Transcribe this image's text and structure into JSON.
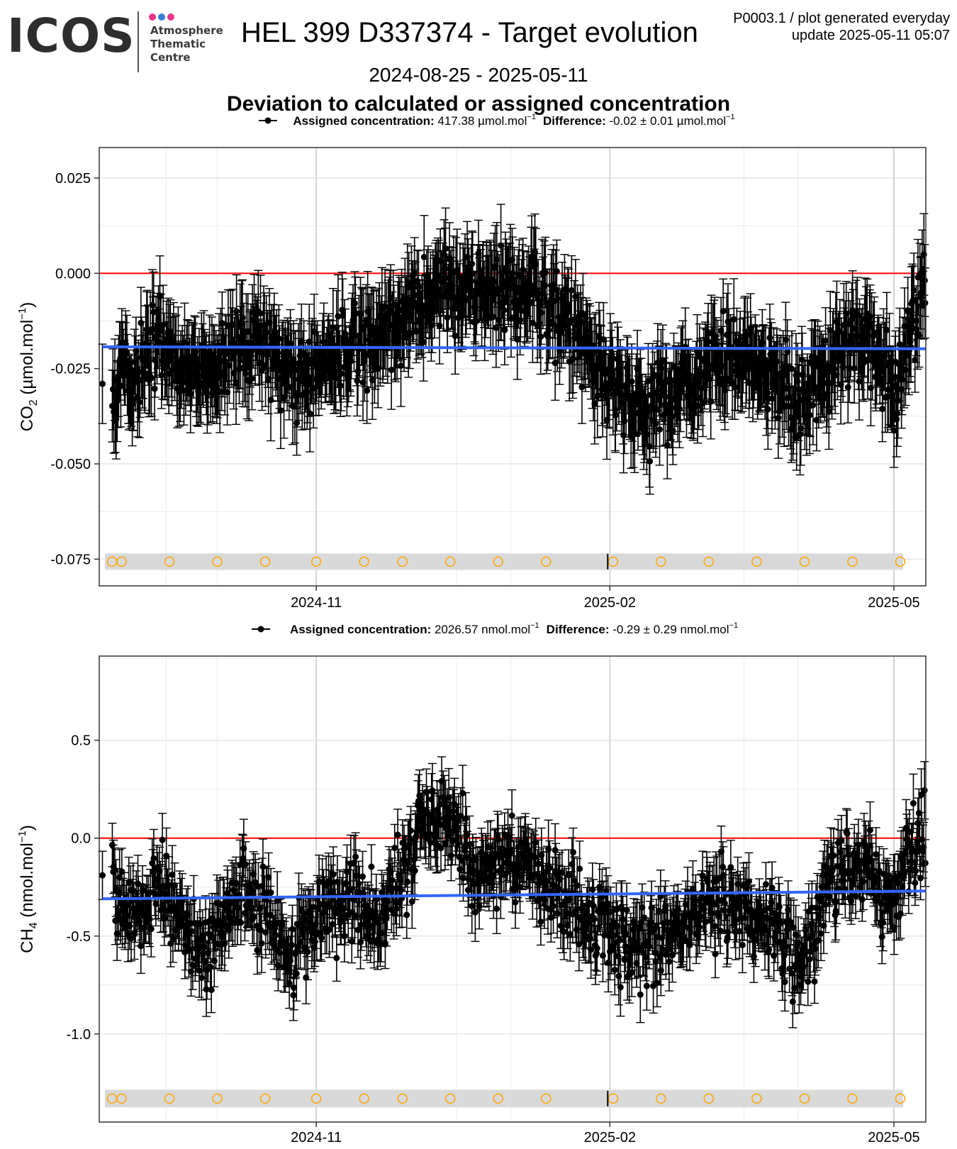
{
  "header": {
    "logo_word": "ICOS",
    "logo_lines": [
      "Atmosphere",
      "Thematic",
      "Centre"
    ],
    "logo_dot_colors": [
      "#e8348a",
      "#3a7fd5",
      "#e8348a"
    ],
    "title": "HEL 399 D337374 - Target evolution",
    "info_line1": "P0003.1 / plot generated everyday",
    "info_line2": "update  2025-05-11 05:07",
    "date_range": "2024-08-25 - 2025-05-11",
    "subtitle": "Deviation to calculated or assigned concentration"
  },
  "colors": {
    "points": "#000000",
    "zero_line": "#ff0000",
    "trend_line": "#3366ff",
    "calibration_marker": "#ffa500",
    "calibration_band": "#d9d9d9",
    "grid": "#ebebeb",
    "grid_major": "#d4d4d4"
  },
  "chart_data": [
    {
      "type": "scatter",
      "name": "CO2",
      "legend": {
        "assigned_label": "Assigned concentration:",
        "assigned_value": "417.38 µmol.mol",
        "difference_label": "Difference:",
        "difference_value": "-0.02 ± 0.01 µmol.mol"
      },
      "ylabel_base": "CO",
      "ylabel_sub": "2",
      "ylabel_unit": "(µmol.mol",
      "ylabel_sup": "-1",
      "ylabel_close": ")",
      "x_range": [
        "2024-08-25",
        "2025-05-11"
      ],
      "xticks": [
        {
          "date": "2024-11-01",
          "label": "2024-11"
        },
        {
          "date": "2025-02-01",
          "label": "2025-02"
        },
        {
          "date": "2025-05-01",
          "label": "2025-05"
        }
      ],
      "ylim": [
        -0.082,
        0.033
      ],
      "yticks": [
        -0.075,
        -0.05,
        -0.025,
        0.0,
        0.025
      ],
      "ytick_labels": [
        "-0.075",
        "-0.050",
        "-0.025",
        "0.000",
        "0.025"
      ],
      "trend": {
        "start": [
          "2024-08-26",
          -0.0193
        ],
        "end": [
          "2025-05-11",
          -0.0198
        ]
      },
      "zero_line": 0,
      "band": [
        -0.0778,
        -0.0735
      ],
      "base_level": -0.0195,
      "noise_amp": 0.0105,
      "err_half": 0.0095,
      "anchors": [
        [
          "2024-08-26",
          -0.029
        ],
        [
          "2024-09-05",
          -0.028
        ],
        [
          "2024-09-12",
          -0.018
        ],
        [
          "2024-09-20",
          -0.026
        ],
        [
          "2024-09-27",
          -0.024
        ],
        [
          "2024-10-05",
          -0.021
        ],
        [
          "2024-10-13",
          -0.015
        ],
        [
          "2024-10-22",
          -0.027
        ],
        [
          "2024-11-01",
          -0.024
        ],
        [
          "2024-11-10",
          -0.021
        ],
        [
          "2024-11-20",
          -0.018
        ],
        [
          "2024-11-30",
          -0.01
        ],
        [
          "2024-12-10",
          -0.004
        ],
        [
          "2024-12-20",
          -0.006
        ],
        [
          "2025-01-01",
          -0.004
        ],
        [
          "2025-01-12",
          -0.008
        ],
        [
          "2025-01-24",
          -0.018
        ],
        [
          "2025-02-05",
          -0.033
        ],
        [
          "2025-02-15",
          -0.036
        ],
        [
          "2025-02-25",
          -0.03
        ],
        [
          "2025-03-08",
          -0.02
        ],
        [
          "2025-03-20",
          -0.023
        ],
        [
          "2025-04-02",
          -0.034
        ],
        [
          "2025-04-12",
          -0.022
        ],
        [
          "2025-04-22",
          -0.017
        ],
        [
          "2025-05-01",
          -0.03
        ],
        [
          "2025-05-10",
          -0.005
        ]
      ],
      "calibrations": [
        "2024-08-29",
        "2024-09-01",
        "2024-09-16",
        "2024-10-01",
        "2024-10-16",
        "2024-11-01",
        "2024-11-16",
        "2024-11-28",
        "2024-12-13",
        "2024-12-28",
        "2025-01-12",
        "2025-02-02",
        "2025-02-17",
        "2025-03-04",
        "2025-03-19",
        "2025-04-03",
        "2025-04-18",
        "2025-05-03"
      ]
    },
    {
      "type": "scatter",
      "name": "CH4",
      "legend": {
        "assigned_label": "Assigned concentration:",
        "assigned_value": "2026.57 nmol.mol",
        "difference_label": "Difference:",
        "difference_value": "-0.29 ± 0.29 nmol.mol"
      },
      "ylabel_base": "CH",
      "ylabel_sub": "4",
      "ylabel_unit": "(nmol.mol",
      "ylabel_sup": "-1",
      "ylabel_close": ")",
      "x_range": [
        "2024-08-25",
        "2025-05-11"
      ],
      "xticks": [
        {
          "date": "2024-11-01",
          "label": "2024-11"
        },
        {
          "date": "2025-02-01",
          "label": "2025-02"
        },
        {
          "date": "2025-05-01",
          "label": "2025-05"
        }
      ],
      "ylim": [
        -1.45,
        0.93
      ],
      "yticks": [
        -1.0,
        -0.5,
        0.0,
        0.5
      ],
      "ytick_labels": [
        "-1.0",
        "-0.5",
        "0.0",
        "0.5"
      ],
      "trend": {
        "start": [
          "2024-08-26",
          -0.31
        ],
        "end": [
          "2025-05-11",
          -0.27
        ]
      },
      "zero_line": 0,
      "band": [
        -1.375,
        -1.285
      ],
      "base_level": -0.29,
      "noise_amp": 0.22,
      "err_half": 0.13,
      "anchors": [
        [
          "2024-08-26",
          -0.19
        ],
        [
          "2024-09-05",
          -0.45
        ],
        [
          "2024-09-12",
          -0.2
        ],
        [
          "2024-09-20",
          -0.4
        ],
        [
          "2024-09-28",
          -0.6
        ],
        [
          "2024-10-05",
          -0.35
        ],
        [
          "2024-10-13",
          -0.3
        ],
        [
          "2024-10-22",
          -0.6
        ],
        [
          "2024-11-01",
          -0.4
        ],
        [
          "2024-11-10",
          -0.3
        ],
        [
          "2024-11-20",
          -0.4
        ],
        [
          "2024-11-30",
          -0.1
        ],
        [
          "2024-12-06",
          0.15
        ],
        [
          "2024-12-14",
          0.05
        ],
        [
          "2024-12-22",
          -0.2
        ],
        [
          "2025-01-01",
          -0.1
        ],
        [
          "2025-01-10",
          -0.2
        ],
        [
          "2025-01-24",
          -0.4
        ],
        [
          "2025-02-05",
          -0.5
        ],
        [
          "2025-02-15",
          -0.55
        ],
        [
          "2025-02-25",
          -0.45
        ],
        [
          "2025-03-08",
          -0.3
        ],
        [
          "2025-03-20",
          -0.4
        ],
        [
          "2025-04-02",
          -0.6
        ],
        [
          "2025-04-12",
          -0.2
        ],
        [
          "2025-04-22",
          -0.1
        ],
        [
          "2025-05-01",
          -0.35
        ],
        [
          "2025-05-10",
          0.05
        ]
      ],
      "calibrations": [
        "2024-08-29",
        "2024-09-01",
        "2024-09-16",
        "2024-10-01",
        "2024-10-16",
        "2024-11-01",
        "2024-11-16",
        "2024-11-28",
        "2024-12-13",
        "2024-12-28",
        "2025-01-12",
        "2025-02-02",
        "2025-02-17",
        "2025-03-04",
        "2025-03-19",
        "2025-04-03",
        "2025-04-18",
        "2025-05-03"
      ]
    }
  ]
}
